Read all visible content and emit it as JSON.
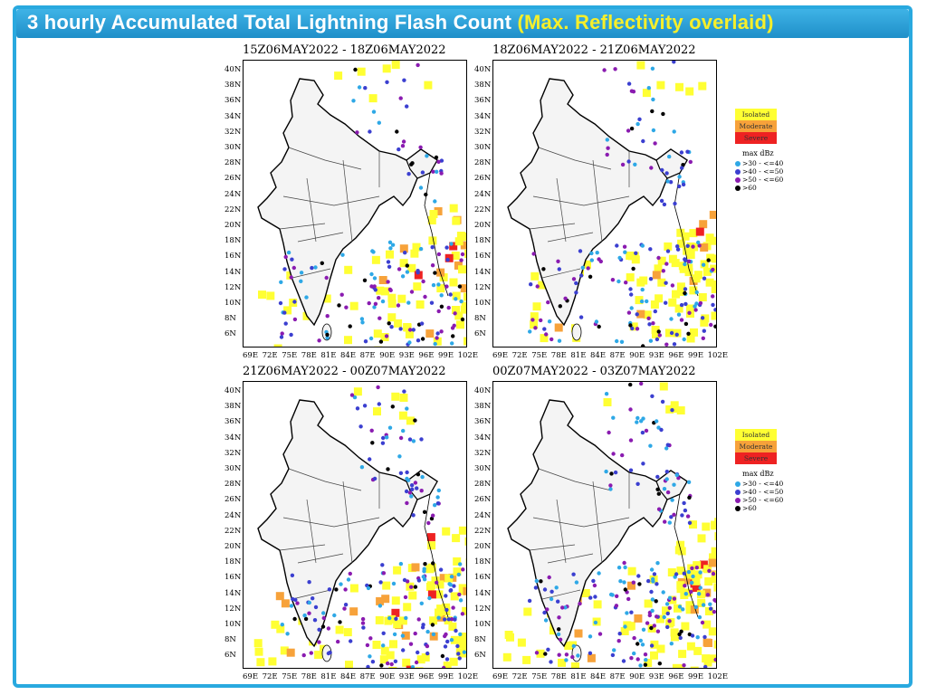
{
  "header": {
    "title_main": "3 hourly Accumulated Total Lightning Flash Count",
    "title_highlight": "(Max. Reflectivity overlaid)"
  },
  "panels": [
    {
      "title": "15Z06MAY2022 - 18Z06MAY2022"
    },
    {
      "title": "18Z06MAY2022 - 21Z06MAY2022"
    },
    {
      "title": "21Z06MAY2022 - 00Z07MAY2022"
    },
    {
      "title": "00Z07MAY2022 - 03Z07MAY2022"
    }
  ],
  "axes": {
    "y_labels": [
      "40N",
      "38N",
      "36N",
      "34N",
      "32N",
      "30N",
      "28N",
      "26N",
      "24N",
      "22N",
      "20N",
      "18N",
      "16N",
      "14N",
      "12N",
      "10N",
      "8N",
      "6N"
    ],
    "x_labels": [
      "69E",
      "72E",
      "75E",
      "78E",
      "81E",
      "84E",
      "87E",
      "90E",
      "93E",
      "96E",
      "99E",
      "102E"
    ]
  },
  "legend": {
    "flash_categories": [
      {
        "label": "Isolated",
        "color": "#ffff33"
      },
      {
        "label": "Moderate",
        "color": "#f7a23a"
      },
      {
        "label": "Severe",
        "color": "#ee2222"
      }
    ],
    "dbz_title": "max dBz",
    "dbz_classes": [
      {
        "label": ">30 - <=40",
        "color": "#2ea8e6"
      },
      {
        "label": ">40 - <=50",
        "color": "#3b3fd0"
      },
      {
        "label": ">50 - <=60",
        "color": "#8a1bb0"
      },
      {
        "label": ">60",
        "color": "#000000"
      }
    ]
  }
}
